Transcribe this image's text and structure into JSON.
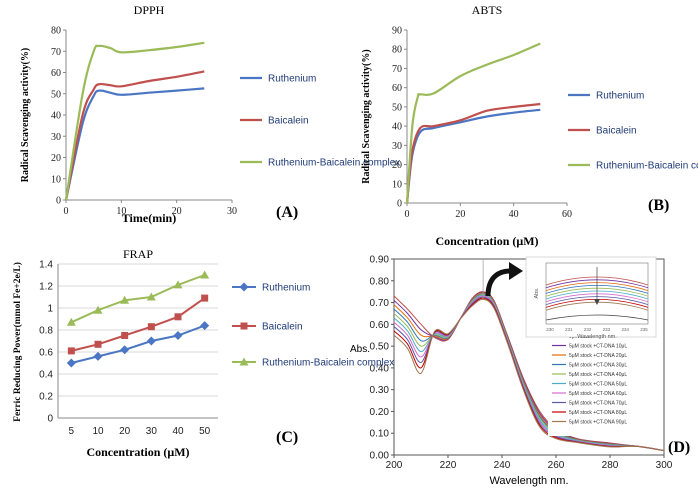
{
  "colors": {
    "ruthenium": "#4a76c4",
    "baicalein": "#c0504d",
    "complex": "#9bbb59",
    "axis": "#888888"
  },
  "chart_data": [
    {
      "type": "line",
      "panel": "A",
      "title": "DPPH",
      "xlabel": "Time(min)",
      "ylabel": "Radical Scavenging activity(%)",
      "xlim": [
        0,
        30
      ],
      "ylim": [
        0,
        80
      ],
      "xticks": [
        0,
        10,
        20,
        30
      ],
      "yticks": [
        0,
        10,
        20,
        30,
        40,
        50,
        60,
        70,
        80
      ],
      "series": [
        {
          "name": "Ruthenium",
          "x": [
            0,
            3,
            5,
            6,
            8,
            10,
            15,
            20,
            25
          ],
          "y": [
            0,
            36,
            49,
            51.5,
            50.5,
            49.5,
            50.5,
            51.5,
            52.5
          ]
        },
        {
          "name": "Baicalein",
          "x": [
            0,
            3,
            5,
            6,
            8,
            10,
            15,
            20,
            25
          ],
          "y": [
            0,
            40,
            52,
            54.5,
            54,
            53.5,
            56,
            58,
            60.5
          ]
        },
        {
          "name": "Ruthenium-Baicalein complex",
          "x": [
            0,
            3,
            5,
            6,
            8,
            10,
            15,
            20,
            25
          ],
          "y": [
            0,
            50,
            70,
            72.5,
            71.5,
            69.5,
            70.5,
            72,
            74
          ]
        }
      ]
    },
    {
      "type": "line",
      "panel": "B",
      "title": "ABTS",
      "xlabel": "Concentration (μM)",
      "ylabel": "Radical Scavenging activity(%)",
      "xlim": [
        0,
        60
      ],
      "ylim": [
        0,
        90
      ],
      "xticks": [
        0,
        20,
        40,
        60
      ],
      "yticks": [
        0,
        10,
        20,
        30,
        40,
        50,
        60,
        70,
        80,
        90
      ],
      "series": [
        {
          "name": "Ruthenium",
          "x": [
            0,
            2,
            5,
            10,
            20,
            30,
            40,
            50
          ],
          "y": [
            0,
            25,
            37,
            39,
            42,
            45,
            47,
            48.5
          ]
        },
        {
          "name": "Baicalein",
          "x": [
            0,
            2,
            5,
            10,
            20,
            30,
            40,
            50
          ],
          "y": [
            0,
            27,
            39,
            40,
            43,
            48,
            50,
            51.5
          ]
        },
        {
          "name": "Ruthenium-Baicalein complex",
          "x": [
            0,
            2,
            4,
            5,
            10,
            20,
            30,
            40,
            50
          ],
          "y": [
            0,
            40,
            55,
            56.5,
            57,
            66,
            72,
            77,
            83
          ]
        }
      ]
    },
    {
      "type": "line",
      "panel": "C",
      "title": "FRAP",
      "xlabel": "Concentration (μM)",
      "ylabel": "Ferric Reducing Power(mmol Fe+2e/L)",
      "categories": [
        "5",
        "10",
        "20",
        "30",
        "40",
        "50"
      ],
      "ylim": [
        0,
        1.4
      ],
      "yticks": [
        "0",
        "0.2",
        "0.4",
        "0.6",
        "0.8",
        "1",
        "1.2",
        "1.4"
      ],
      "series": [
        {
          "name": "Ruthenium",
          "marker": "diamond",
          "values": [
            0.5,
            0.56,
            0.62,
            0.7,
            0.75,
            0.84
          ]
        },
        {
          "name": "Baicalein",
          "marker": "square",
          "values": [
            0.61,
            0.67,
            0.75,
            0.83,
            0.92,
            1.09
          ]
        },
        {
          "name": "Ruthenium-Baicalein complex",
          "marker": "triangle",
          "values": [
            0.87,
            0.98,
            1.07,
            1.1,
            1.21,
            1.3
          ]
        }
      ]
    },
    {
      "type": "line",
      "panel": "D",
      "xlabel": "Wavelength nm.",
      "ylabel": "Abs.",
      "xlim": [
        200,
        300
      ],
      "ylim": [
        0,
        0.9
      ],
      "xticks": [
        200,
        220,
        240,
        260,
        280,
        300
      ],
      "yticks": [
        "0.00",
        "0.10",
        "0.20",
        "0.30",
        "0.40",
        "0.50",
        "0.60",
        "0.70",
        "0.80",
        "0.90"
      ],
      "peak_wavelength": 233,
      "legend": [
        "5μM stock",
        "5μM stock +CT-DNA 10μL",
        "5μM stock +CT-DNA 20μL",
        "5μM stock +CT-DNA 30μL",
        "5μM stock +CT-DNA 40μL",
        "5μM stock +CT-DNA 50μL",
        "5μM stock +CT-DNA 60μL",
        "5μM stock +CT-DNA 70μL",
        "5μM stock +CT-DNA 80μL",
        "5μM stock +CT-DNA 90μL"
      ],
      "curve_colors": [
        "#c0504d",
        "#7030a0",
        "#e36c09",
        "#2e75b6",
        "#9bbb59",
        "#4bacc6",
        "#d86ccf",
        "#5a5aa8",
        "#c00000",
        "#a07850"
      ],
      "trough_abs": [
        0.73,
        0.71,
        0.69,
        0.67,
        0.65,
        0.63,
        0.61,
        0.59,
        0.57,
        0.55
      ],
      "peak_abs": [
        0.75,
        0.748,
        0.745,
        0.74,
        0.737,
        0.733,
        0.73,
        0.725,
        0.72,
        0.715
      ],
      "inset": {
        "ylabel": "Abs.",
        "xlabel": "Wavelength nm.",
        "xticks": [
          "230",
          "231",
          "232",
          "233",
          "234",
          "235"
        ]
      }
    }
  ],
  "panels": {
    "a": "(A)",
    "b": "(B)",
    "c": "(C)",
    "d": "(D)"
  }
}
